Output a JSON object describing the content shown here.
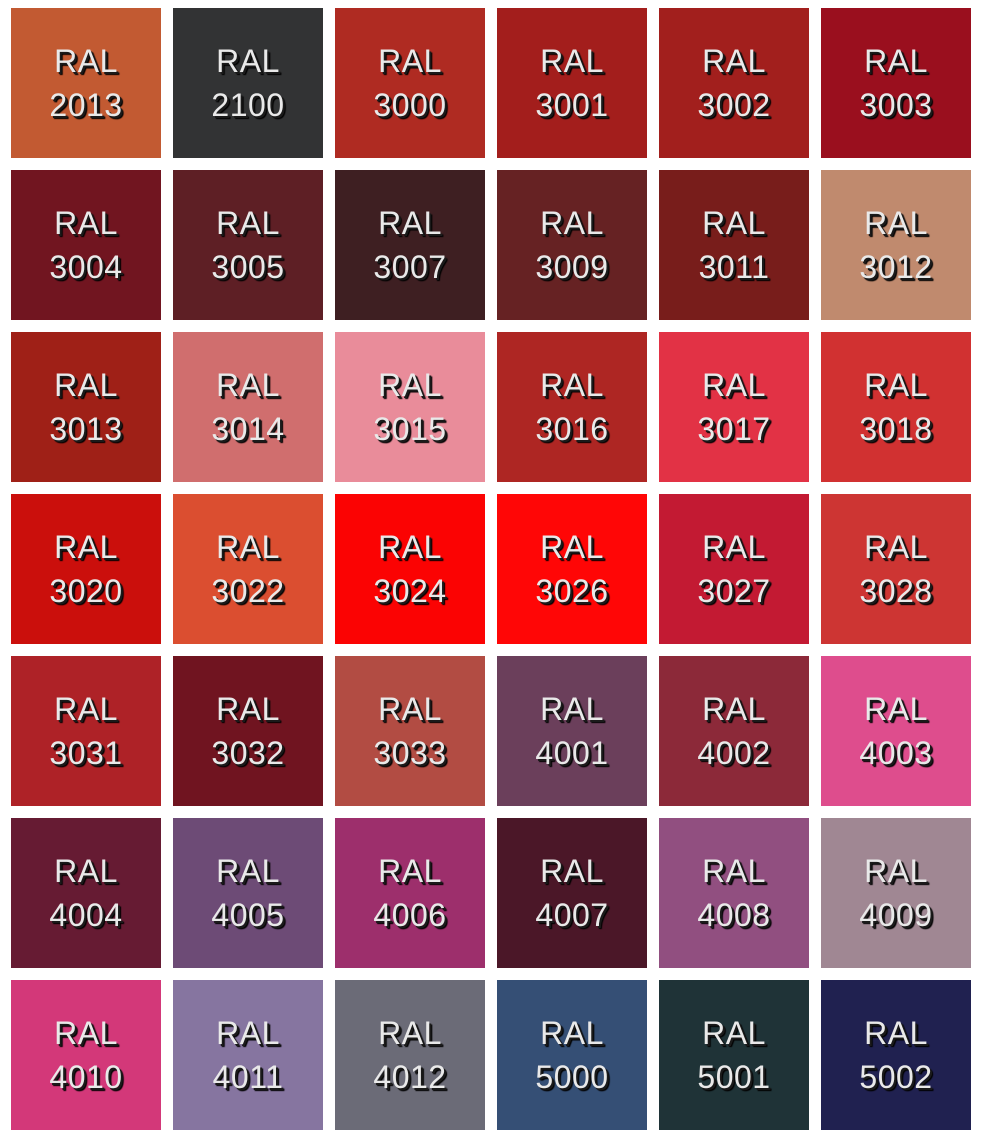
{
  "swatches": [
    {
      "prefix": "RAL",
      "code": "2013",
      "color": "#c25a32"
    },
    {
      "prefix": "RAL",
      "code": "2100",
      "color": "#323334"
    },
    {
      "prefix": "RAL",
      "code": "3000",
      "color": "#af2b22"
    },
    {
      "prefix": "RAL",
      "code": "3001",
      "color": "#a31e1c"
    },
    {
      "prefix": "RAL",
      "code": "3002",
      "color": "#a21f1d"
    },
    {
      "prefix": "RAL",
      "code": "3003",
      "color": "#9a0f1e"
    },
    {
      "prefix": "RAL",
      "code": "3004",
      "color": "#711520"
    },
    {
      "prefix": "RAL",
      "code": "3005",
      "color": "#5e1f25"
    },
    {
      "prefix": "RAL",
      "code": "3007",
      "color": "#3e1f22"
    },
    {
      "prefix": "RAL",
      "code": "3009",
      "color": "#662223"
    },
    {
      "prefix": "RAL",
      "code": "3011",
      "color": "#781d1b"
    },
    {
      "prefix": "RAL",
      "code": "3012",
      "color": "#c08a6e"
    },
    {
      "prefix": "RAL",
      "code": "3013",
      "color": "#9f2017"
    },
    {
      "prefix": "RAL",
      "code": "3014",
      "color": "#d06e6e"
    },
    {
      "prefix": "RAL",
      "code": "3015",
      "color": "#e98c9a"
    },
    {
      "prefix": "RAL",
      "code": "3016",
      "color": "#ae2623"
    },
    {
      "prefix": "RAL",
      "code": "3017",
      "color": "#e23245"
    },
    {
      "prefix": "RAL",
      "code": "3018",
      "color": "#d13131"
    },
    {
      "prefix": "RAL",
      "code": "3020",
      "color": "#cb0f0c"
    },
    {
      "prefix": "RAL",
      "code": "3022",
      "color": "#db4e30"
    },
    {
      "prefix": "RAL",
      "code": "3024",
      "color": "#fb0303"
    },
    {
      "prefix": "RAL",
      "code": "3026",
      "color": "#ff0606"
    },
    {
      "prefix": "RAL",
      "code": "3027",
      "color": "#c31a33"
    },
    {
      "prefix": "RAL",
      "code": "3028",
      "color": "#cd3533"
    },
    {
      "prefix": "RAL",
      "code": "3031",
      "color": "#ae2227"
    },
    {
      "prefix": "RAL",
      "code": "3032",
      "color": "#701420"
    },
    {
      "prefix": "RAL",
      "code": "3033",
      "color": "#b24c43"
    },
    {
      "prefix": "RAL",
      "code": "4001",
      "color": "#6b3f5b"
    },
    {
      "prefix": "RAL",
      "code": "4002",
      "color": "#8c2939"
    },
    {
      "prefix": "RAL",
      "code": "4003",
      "color": "#de4d8d"
    },
    {
      "prefix": "RAL",
      "code": "4004",
      "color": "#661b33"
    },
    {
      "prefix": "RAL",
      "code": "4005",
      "color": "#6d4b76"
    },
    {
      "prefix": "RAL",
      "code": "4006",
      "color": "#9d2f6c"
    },
    {
      "prefix": "RAL",
      "code": "4007",
      "color": "#4b1728"
    },
    {
      "prefix": "RAL",
      "code": "4008",
      "color": "#914f80"
    },
    {
      "prefix": "RAL",
      "code": "4009",
      "color": "#a08793"
    },
    {
      "prefix": "RAL",
      "code": "4010",
      "color": "#d33879"
    },
    {
      "prefix": "RAL",
      "code": "4011",
      "color": "#8675a0"
    },
    {
      "prefix": "RAL",
      "code": "4012",
      "color": "#6b6b77"
    },
    {
      "prefix": "RAL",
      "code": "5000",
      "color": "#354f75"
    },
    {
      "prefix": "RAL",
      "code": "5001",
      "color": "#1f3337"
    },
    {
      "prefix": "RAL",
      "code": "5002",
      "color": "#202150"
    }
  ]
}
